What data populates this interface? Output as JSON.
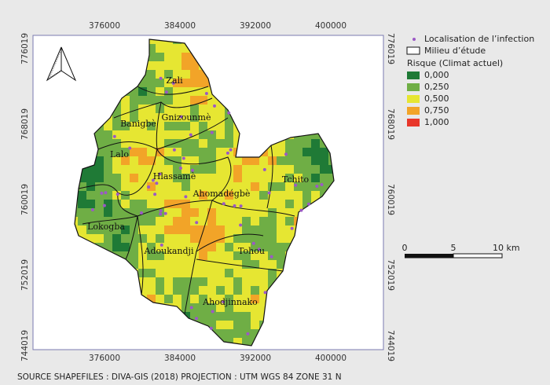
{
  "map": {
    "x_labels": [
      "376000",
      "384000",
      "392000",
      "400000"
    ],
    "y_labels": [
      "776019",
      "768019",
      "760019",
      "752019",
      "744019"
    ],
    "places": [
      "Zali",
      "Banigbè",
      "Gnizounmè",
      "Lalo",
      "Hlassamè",
      "Ahomadégbè",
      "Tchito",
      "Lokogba",
      "Adoukandji",
      "Tohou",
      "Ahodjinnako"
    ],
    "legend": {
      "points": "Localisation de l’infection",
      "area": "Milieu d’étude",
      "risk_title": "Risque (Climat actuel)",
      "classes": [
        {
          "label": "0,000",
          "color": "#1f7a36"
        },
        {
          "label": "0,250",
          "color": "#6fae45"
        },
        {
          "label": "0,500",
          "color": "#e6e632"
        },
        {
          "label": "0,750",
          "color": "#f2a428"
        },
        {
          "label": "1,000",
          "color": "#e8372a"
        }
      ],
      "point_color": "#9b59c6"
    },
    "scale_bar": {
      "labels": [
        "0",
        "5",
        "10 km"
      ]
    },
    "source": "SOURCE SHAPEFILES : DIVA-GIS (2018) PROJECTION : UTM WGS 84 ZONE 31 N"
  }
}
